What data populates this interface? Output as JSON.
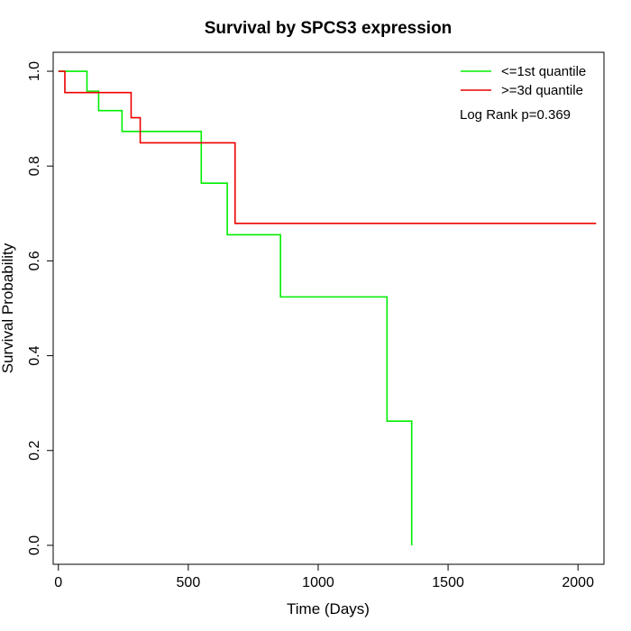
{
  "chart_data": {
    "type": "line",
    "title": "Survival by SPCS3 expression",
    "xlabel": "Time (Days)",
    "ylabel": "Survival Probability",
    "xlim": [
      -20,
      2100
    ],
    "ylim": [
      -0.04,
      1.04
    ],
    "x_ticks": [
      0,
      500,
      1000,
      1500,
      2000
    ],
    "y_ticks": [
      0.0,
      0.2,
      0.4,
      0.6,
      0.8,
      1.0
    ],
    "x_tick_labels": [
      "0",
      "500",
      "1000",
      "1500",
      "2000"
    ],
    "y_tick_labels": [
      "0.0",
      "0.2",
      "0.4",
      "0.6",
      "0.8",
      "1.0"
    ],
    "grid": false,
    "legend_position": "top-right",
    "annotation": "Log Rank p=0.369",
    "series": [
      {
        "name": "<=1st quantile",
        "color": "#00ee00",
        "step_x": [
          0,
          110,
          155,
          245,
          550,
          650,
          855,
          1265,
          1360
        ],
        "step_y": [
          1.0,
          0.958,
          0.917,
          0.873,
          0.764,
          0.655,
          0.524,
          0.262,
          0.0
        ]
      },
      {
        "name": ">=3d quantile",
        "color": "#ee0000",
        "step_x": [
          0,
          25,
          280,
          315,
          680,
          2070
        ],
        "step_y": [
          1.0,
          0.955,
          0.902,
          0.849,
          0.679,
          0.679
        ]
      }
    ]
  }
}
